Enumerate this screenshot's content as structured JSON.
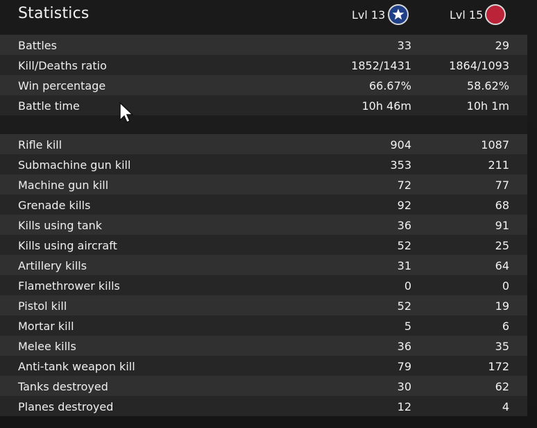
{
  "header": {
    "title": "Statistics",
    "player1_level": "Lvl 13",
    "player2_level": "Lvl 15",
    "player1_icon": "usa-star-icon",
    "player2_icon": "japan-red-circle-icon"
  },
  "summary": [
    {
      "label": "Battles",
      "a": "33",
      "b": "29"
    },
    {
      "label": "Kill/Deaths ratio",
      "a": "1852/1431",
      "b": "1864/1093"
    },
    {
      "label": "Win percentage",
      "a": "66.67%",
      "b": "58.62%"
    },
    {
      "label": "Battle time",
      "a": "10h 46m",
      "b": "10h 1m"
    }
  ],
  "details": [
    {
      "label": "Rifle kill",
      "a": "904",
      "b": "1087"
    },
    {
      "label": "Submachine gun kill",
      "a": "353",
      "b": "211"
    },
    {
      "label": "Machine gun kill",
      "a": "72",
      "b": "77"
    },
    {
      "label": "Grenade kills",
      "a": "92",
      "b": "68"
    },
    {
      "label": "Kills using tank",
      "a": "36",
      "b": "91"
    },
    {
      "label": "Kills using aircraft",
      "a": "52",
      "b": "25"
    },
    {
      "label": "Artillery kills",
      "a": "31",
      "b": "64"
    },
    {
      "label": "Flamethrower kills",
      "a": "0",
      "b": "0"
    },
    {
      "label": "Pistol kill",
      "a": "52",
      "b": "19"
    },
    {
      "label": "Mortar kill",
      "a": "5",
      "b": "6"
    },
    {
      "label": "Melee kills",
      "a": "36",
      "b": "35"
    },
    {
      "label": "Anti-tank weapon kill",
      "a": "79",
      "b": "172"
    },
    {
      "label": "Tanks destroyed",
      "a": "30",
      "b": "62"
    },
    {
      "label": "Planes destroyed",
      "a": "12",
      "b": "4"
    }
  ],
  "colors": {
    "us_blue": "#1f3f86",
    "japan_red": "#bb2438"
  }
}
